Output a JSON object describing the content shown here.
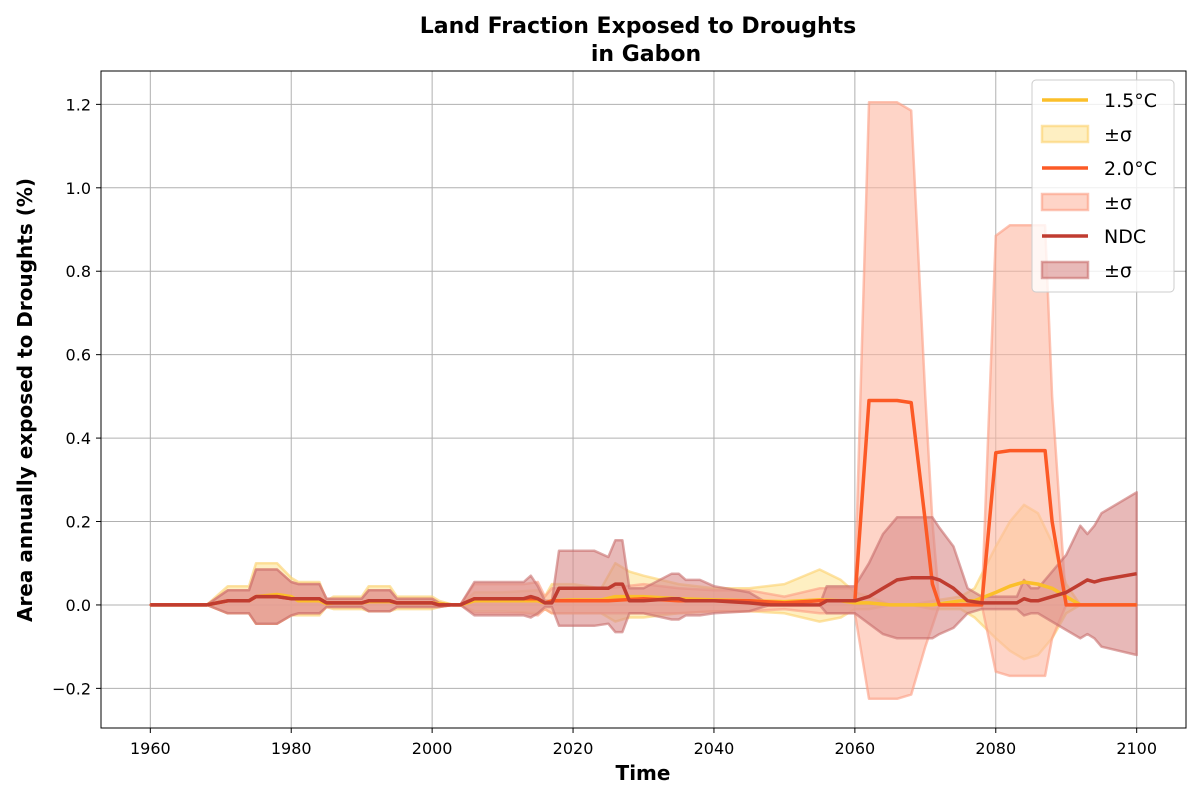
{
  "chart_data": {
    "type": "line",
    "title": "Land Fraction Exposed to Droughts",
    "subtitle": "in Gabon",
    "xlabel": "Time",
    "ylabel": "Area annually exposed to Droughts (%)",
    "xlim": [
      1953,
      2107
    ],
    "ylim": [
      -0.295,
      1.28
    ],
    "xticks": [
      1960,
      1980,
      2000,
      2020,
      2040,
      2060,
      2080,
      2100
    ],
    "xtick_labels": [
      "1960",
      "1980",
      "2000",
      "2020",
      "2040",
      "2060",
      "2080",
      "2100"
    ],
    "yticks": [
      -0.2,
      0.0,
      0.2,
      0.4,
      0.6,
      0.8,
      1.0,
      1.2
    ],
    "ytick_labels": [
      "−0.2",
      "0.0",
      "0.2",
      "0.4",
      "0.6",
      "0.8",
      "1.0",
      "1.2"
    ],
    "grid": true,
    "legend": {
      "position": "top-right",
      "entries": [
        {
          "label": "1.5°C",
          "kind": "line",
          "series": 0
        },
        {
          "label": "±σ",
          "kind": "band",
          "series": 0
        },
        {
          "label": "2.0°C",
          "kind": "line",
          "series": 1
        },
        {
          "label": "±σ",
          "kind": "band",
          "series": 1
        },
        {
          "label": "NDC",
          "kind": "line",
          "series": 2
        },
        {
          "label": "±σ",
          "kind": "band",
          "series": 2
        }
      ]
    },
    "series": [
      {
        "name": "1.5°C",
        "color": "#fbbf2a",
        "band_fill": "#fde49a",
        "band_edge": "#fbd16b",
        "x": [
          1960,
          1968,
          1971,
          1974,
          1975,
          1978,
          1980,
          1981,
          1984,
          1985,
          1986,
          1990,
          1991,
          1994,
          1995,
          2000,
          2001,
          2003,
          2004,
          2006,
          2010,
          2015,
          2016,
          2017,
          2020,
          2024,
          2026,
          2028,
          2030,
          2035,
          2040,
          2045,
          2050,
          2055,
          2058,
          2060,
          2062,
          2065,
          2068,
          2071,
          2075,
          2077,
          2080,
          2082,
          2084,
          2086,
          2088,
          2090,
          2092,
          2100
        ],
        "y": [
          0,
          0,
          0.01,
          0.01,
          0.02,
          0.025,
          0.02,
          0.01,
          0.01,
          0.003,
          0.005,
          0.005,
          0.008,
          0.008,
          0.005,
          0.005,
          0.003,
          0,
          0,
          0.01,
          0.01,
          0.01,
          0.005,
          0.01,
          0.012,
          0.012,
          0.02,
          0.02,
          0.02,
          0.015,
          0.012,
          0.01,
          0.008,
          0.012,
          0.01,
          0.005,
          0.005,
          0,
          0,
          0,
          0.01,
          0.01,
          0.03,
          0.045,
          0.055,
          0.05,
          0.04,
          0.02,
          0,
          0
        ],
        "upper": [
          0,
          0,
          0.045,
          0.045,
          0.1,
          0.1,
          0.065,
          0.055,
          0.055,
          0.01,
          0.02,
          0.02,
          0.045,
          0.045,
          0.02,
          0.02,
          0.01,
          0,
          0,
          0.03,
          0.03,
          0.035,
          0.02,
          0.05,
          0.05,
          0.04,
          0.1,
          0.08,
          0.07,
          0.05,
          0.04,
          0.04,
          0.05,
          0.085,
          0.06,
          0.03,
          0.02,
          0,
          0,
          0.01,
          0.02,
          0.04,
          0.14,
          0.2,
          0.24,
          0.22,
          0.15,
          0.05,
          0,
          0
        ],
        "lower": [
          0,
          0,
          -0.02,
          -0.02,
          -0.045,
          -0.045,
          -0.025,
          -0.025,
          -0.025,
          -0.005,
          -0.01,
          -0.01,
          -0.015,
          -0.015,
          -0.01,
          -0.01,
          -0.005,
          0,
          0,
          -0.015,
          -0.015,
          -0.02,
          -0.01,
          -0.02,
          -0.02,
          -0.02,
          -0.04,
          -0.03,
          -0.03,
          -0.02,
          -0.015,
          -0.015,
          -0.02,
          -0.04,
          -0.03,
          -0.01,
          -0.01,
          0,
          0,
          -0.01,
          -0.01,
          -0.03,
          -0.08,
          -0.11,
          -0.13,
          -0.12,
          -0.08,
          -0.02,
          0,
          0
        ]
      },
      {
        "name": "2.0°C",
        "color": "#fc5a26",
        "band_fill": "#fdb8a2",
        "band_edge": "#fb9c82",
        "x": [
          1960,
          1968,
          1971,
          1974,
          1975,
          1978,
          1980,
          1981,
          1984,
          1985,
          1986,
          1990,
          1991,
          1994,
          1995,
          2000,
          2001,
          2003,
          2004,
          2006,
          2010,
          2013,
          2015,
          2016,
          2017,
          2020,
          2025,
          2030,
          2035,
          2040,
          2045,
          2050,
          2055,
          2058,
          2060,
          2062,
          2066,
          2068,
          2070,
          2071,
          2072,
          2077,
          2078,
          2080,
          2082,
          2087,
          2088,
          2090,
          2100
        ],
        "y": [
          0,
          0,
          0.01,
          0.01,
          0.02,
          0.02,
          0.015,
          0.015,
          0.015,
          0.005,
          0.005,
          0.005,
          0.01,
          0.01,
          0.005,
          0.005,
          0,
          0,
          0,
          0.015,
          0.015,
          0.015,
          0.015,
          0.005,
          0.01,
          0.01,
          0.01,
          0.015,
          0.01,
          0.01,
          0.01,
          0.005,
          0.01,
          0.01,
          0.01,
          0.49,
          0.49,
          0.485,
          0.2,
          0.05,
          0,
          0,
          0,
          0.365,
          0.37,
          0.37,
          0.2,
          0,
          0
        ],
        "upper": [
          0,
          0,
          0.035,
          0.035,
          0.085,
          0.085,
          0.055,
          0.05,
          0.05,
          0.015,
          0.015,
          0.015,
          0.035,
          0.035,
          0.015,
          0.015,
          0.005,
          0,
          0,
          0.05,
          0.05,
          0.05,
          0.055,
          0.02,
          0.04,
          0.04,
          0.04,
          0.05,
          0.04,
          0.035,
          0.035,
          0.02,
          0.04,
          0.04,
          0.04,
          1.205,
          1.205,
          1.185,
          0.5,
          0.2,
          0,
          0,
          0,
          0.885,
          0.91,
          0.91,
          0.5,
          0,
          0
        ],
        "lower": [
          0,
          0,
          -0.02,
          -0.02,
          -0.045,
          -0.045,
          -0.025,
          -0.02,
          -0.02,
          -0.005,
          -0.005,
          -0.005,
          -0.015,
          -0.015,
          -0.005,
          -0.005,
          -0.005,
          0,
          0,
          -0.02,
          -0.02,
          -0.02,
          -0.025,
          -0.01,
          -0.02,
          -0.02,
          -0.02,
          -0.02,
          -0.02,
          -0.015,
          -0.015,
          -0.01,
          -0.02,
          -0.02,
          -0.02,
          -0.225,
          -0.225,
          -0.215,
          -0.1,
          -0.05,
          0,
          0,
          0,
          -0.16,
          -0.17,
          -0.17,
          -0.08,
          0,
          0
        ]
      },
      {
        "name": "NDC",
        "color": "#c03c30",
        "band_fill": "#d98a88",
        "band_edge": "#c86e6c",
        "x": [
          1960,
          1968,
          1971,
          1974,
          1975,
          1978,
          1980,
          1981,
          1984,
          1985,
          1986,
          1990,
          1991,
          1994,
          1995,
          2000,
          2001,
          2003,
          2004,
          2006,
          2010,
          2013,
          2014,
          2015,
          2016,
          2017,
          2018,
          2023,
          2025,
          2026,
          2027,
          2028,
          2030,
          2034,
          2035,
          2036,
          2038,
          2040,
          2045,
          2048,
          2055,
          2056,
          2059,
          2060,
          2062,
          2064,
          2066,
          2068,
          2071,
          2072,
          2074,
          2076,
          2078,
          2080,
          2082,
          2083,
          2084,
          2085,
          2086,
          2090,
          2092,
          2093,
          2094,
          2095,
          2100
        ],
        "y": [
          0,
          0,
          0.01,
          0.01,
          0.02,
          0.02,
          0.015,
          0.015,
          0.015,
          0.005,
          0.005,
          0.005,
          0.01,
          0.01,
          0.005,
          0.005,
          0,
          0,
          0,
          0.015,
          0.015,
          0.015,
          0.02,
          0.015,
          0.005,
          0.005,
          0.04,
          0.04,
          0.04,
          0.05,
          0.05,
          0.01,
          0.01,
          0.015,
          0.015,
          0.01,
          0.01,
          0.01,
          0.005,
          0,
          0,
          0.01,
          0.01,
          0.01,
          0.02,
          0.04,
          0.06,
          0.065,
          0.065,
          0.06,
          0.04,
          0.01,
          0.005,
          0.005,
          0.005,
          0.005,
          0.015,
          0.01,
          0.01,
          0.03,
          0.05,
          0.06,
          0.055,
          0.06,
          0.075
        ],
        "upper": [
          0,
          0,
          0.035,
          0.035,
          0.085,
          0.085,
          0.055,
          0.05,
          0.05,
          0.015,
          0.015,
          0.015,
          0.035,
          0.035,
          0.015,
          0.015,
          0.005,
          0,
          0,
          0.055,
          0.055,
          0.055,
          0.07,
          0.045,
          0.01,
          0.01,
          0.13,
          0.13,
          0.115,
          0.155,
          0.155,
          0.04,
          0.04,
          0.075,
          0.075,
          0.06,
          0.06,
          0.045,
          0.03,
          0,
          0,
          0.045,
          0.045,
          0.045,
          0.1,
          0.17,
          0.21,
          0.21,
          0.21,
          0.185,
          0.14,
          0.04,
          0.02,
          0.02,
          0.02,
          0.02,
          0.06,
          0.04,
          0.04,
          0.12,
          0.19,
          0.17,
          0.19,
          0.22,
          0.27
        ],
        "lower": [
          0,
          0,
          -0.02,
          -0.02,
          -0.045,
          -0.045,
          -0.025,
          -0.02,
          -0.02,
          -0.005,
          -0.005,
          -0.005,
          -0.015,
          -0.015,
          -0.005,
          -0.005,
          -0.005,
          0,
          0,
          -0.025,
          -0.025,
          -0.025,
          -0.03,
          -0.02,
          -0.005,
          -0.005,
          -0.05,
          -0.05,
          -0.045,
          -0.065,
          -0.065,
          -0.02,
          -0.02,
          -0.035,
          -0.035,
          -0.025,
          -0.025,
          -0.02,
          -0.015,
          0,
          0,
          -0.02,
          -0.02,
          -0.02,
          -0.045,
          -0.07,
          -0.08,
          -0.08,
          -0.08,
          -0.07,
          -0.055,
          -0.02,
          -0.01,
          -0.01,
          -0.01,
          -0.01,
          -0.025,
          -0.02,
          -0.02,
          -0.06,
          -0.08,
          -0.07,
          -0.08,
          -0.1,
          -0.12
        ]
      }
    ]
  }
}
